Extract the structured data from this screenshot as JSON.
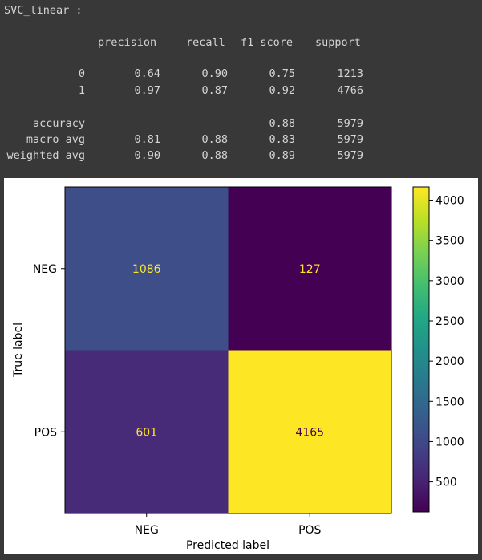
{
  "console": {
    "header": "SVC_linear :",
    "columns": [
      "precision",
      "recall",
      "f1-score",
      "support"
    ],
    "rows": [
      {
        "label": "0",
        "precision": "0.64",
        "recall": "0.90",
        "f1": "0.75",
        "support": "1213"
      },
      {
        "label": "1",
        "precision": "0.97",
        "recall": "0.87",
        "f1": "0.92",
        "support": "4766"
      },
      {
        "label": "accuracy",
        "precision": "",
        "recall": "",
        "f1": "0.88",
        "support": "5979"
      },
      {
        "label": "macro avg",
        "precision": "0.81",
        "recall": "0.88",
        "f1": "0.83",
        "support": "5979"
      },
      {
        "label": "weighted avg",
        "precision": "0.90",
        "recall": "0.88",
        "f1": "0.89",
        "support": "5979"
      }
    ]
  },
  "chart_data": {
    "type": "heatmap",
    "title": "",
    "xlabel": "Predicted label",
    "ylabel": "True label",
    "x_categories": [
      "NEG",
      "POS"
    ],
    "y_categories": [
      "NEG",
      "POS"
    ],
    "values": [
      [
        1086,
        127
      ],
      [
        601,
        4165
      ]
    ],
    "colormap": "viridis",
    "colorbar": {
      "ticks": [
        500,
        1000,
        1500,
        2000,
        2500,
        3000,
        3500,
        4000
      ],
      "range": [
        127,
        4165
      ]
    },
    "grid": false
  }
}
